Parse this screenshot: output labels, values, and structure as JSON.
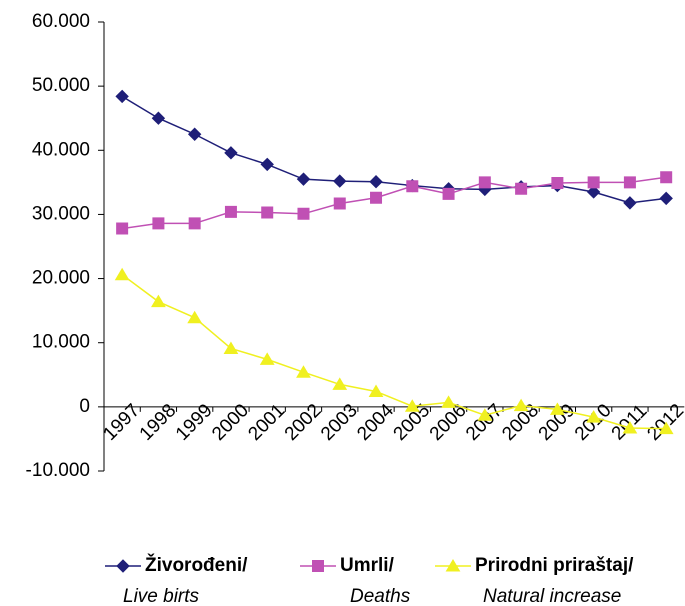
{
  "chart_data": {
    "type": "line",
    "categories": [
      "1997",
      "1998",
      "1999",
      "2000",
      "2001",
      "2002",
      "2003",
      "2004",
      "2005",
      "2006",
      "2007",
      "2008",
      "2009",
      "2010",
      "2011",
      "2012"
    ],
    "series": [
      {
        "name": "Živorođeni/",
        "subname": "Live birts",
        "color": "#1f1f78",
        "marker": "diamond",
        "values": [
          48400,
          45000,
          42500,
          39600,
          37800,
          35500,
          35200,
          35100,
          34500,
          34000,
          33900,
          34300,
          34500,
          33500,
          31800,
          32500
        ]
      },
      {
        "name": "Umrli/",
        "subname": "Deaths",
        "color": "#c050b4",
        "marker": "square",
        "values": [
          27800,
          28600,
          28600,
          30400,
          30300,
          30100,
          31700,
          32600,
          34400,
          33200,
          35000,
          34000,
          34900,
          35000,
          35000,
          35800
        ]
      },
      {
        "name": "Prirodni priraštaj/",
        "subname": "Natural increase",
        "color": "#f0f020",
        "marker": "triangle",
        "values": [
          20600,
          16400,
          13900,
          9100,
          7400,
          5400,
          3500,
          2400,
          100,
          700,
          -1300,
          200,
          -400,
          -1600,
          -3300,
          -3400
        ]
      }
    ],
    "ylim": [
      -10000,
      60000
    ],
    "yticks": [
      {
        "value": -10000,
        "label": "-10.000"
      },
      0,
      {
        "value": 10000,
        "label": "10.000"
      },
      {
        "value": 20000,
        "label": "20.000"
      },
      {
        "value": 30000,
        "label": "30.000"
      },
      {
        "value": 40000,
        "label": "40.000"
      },
      {
        "value": 50000,
        "label": "50.000"
      },
      {
        "value": 60000,
        "label": "60.000"
      }
    ],
    "grid": false,
    "legend": "bottom"
  }
}
